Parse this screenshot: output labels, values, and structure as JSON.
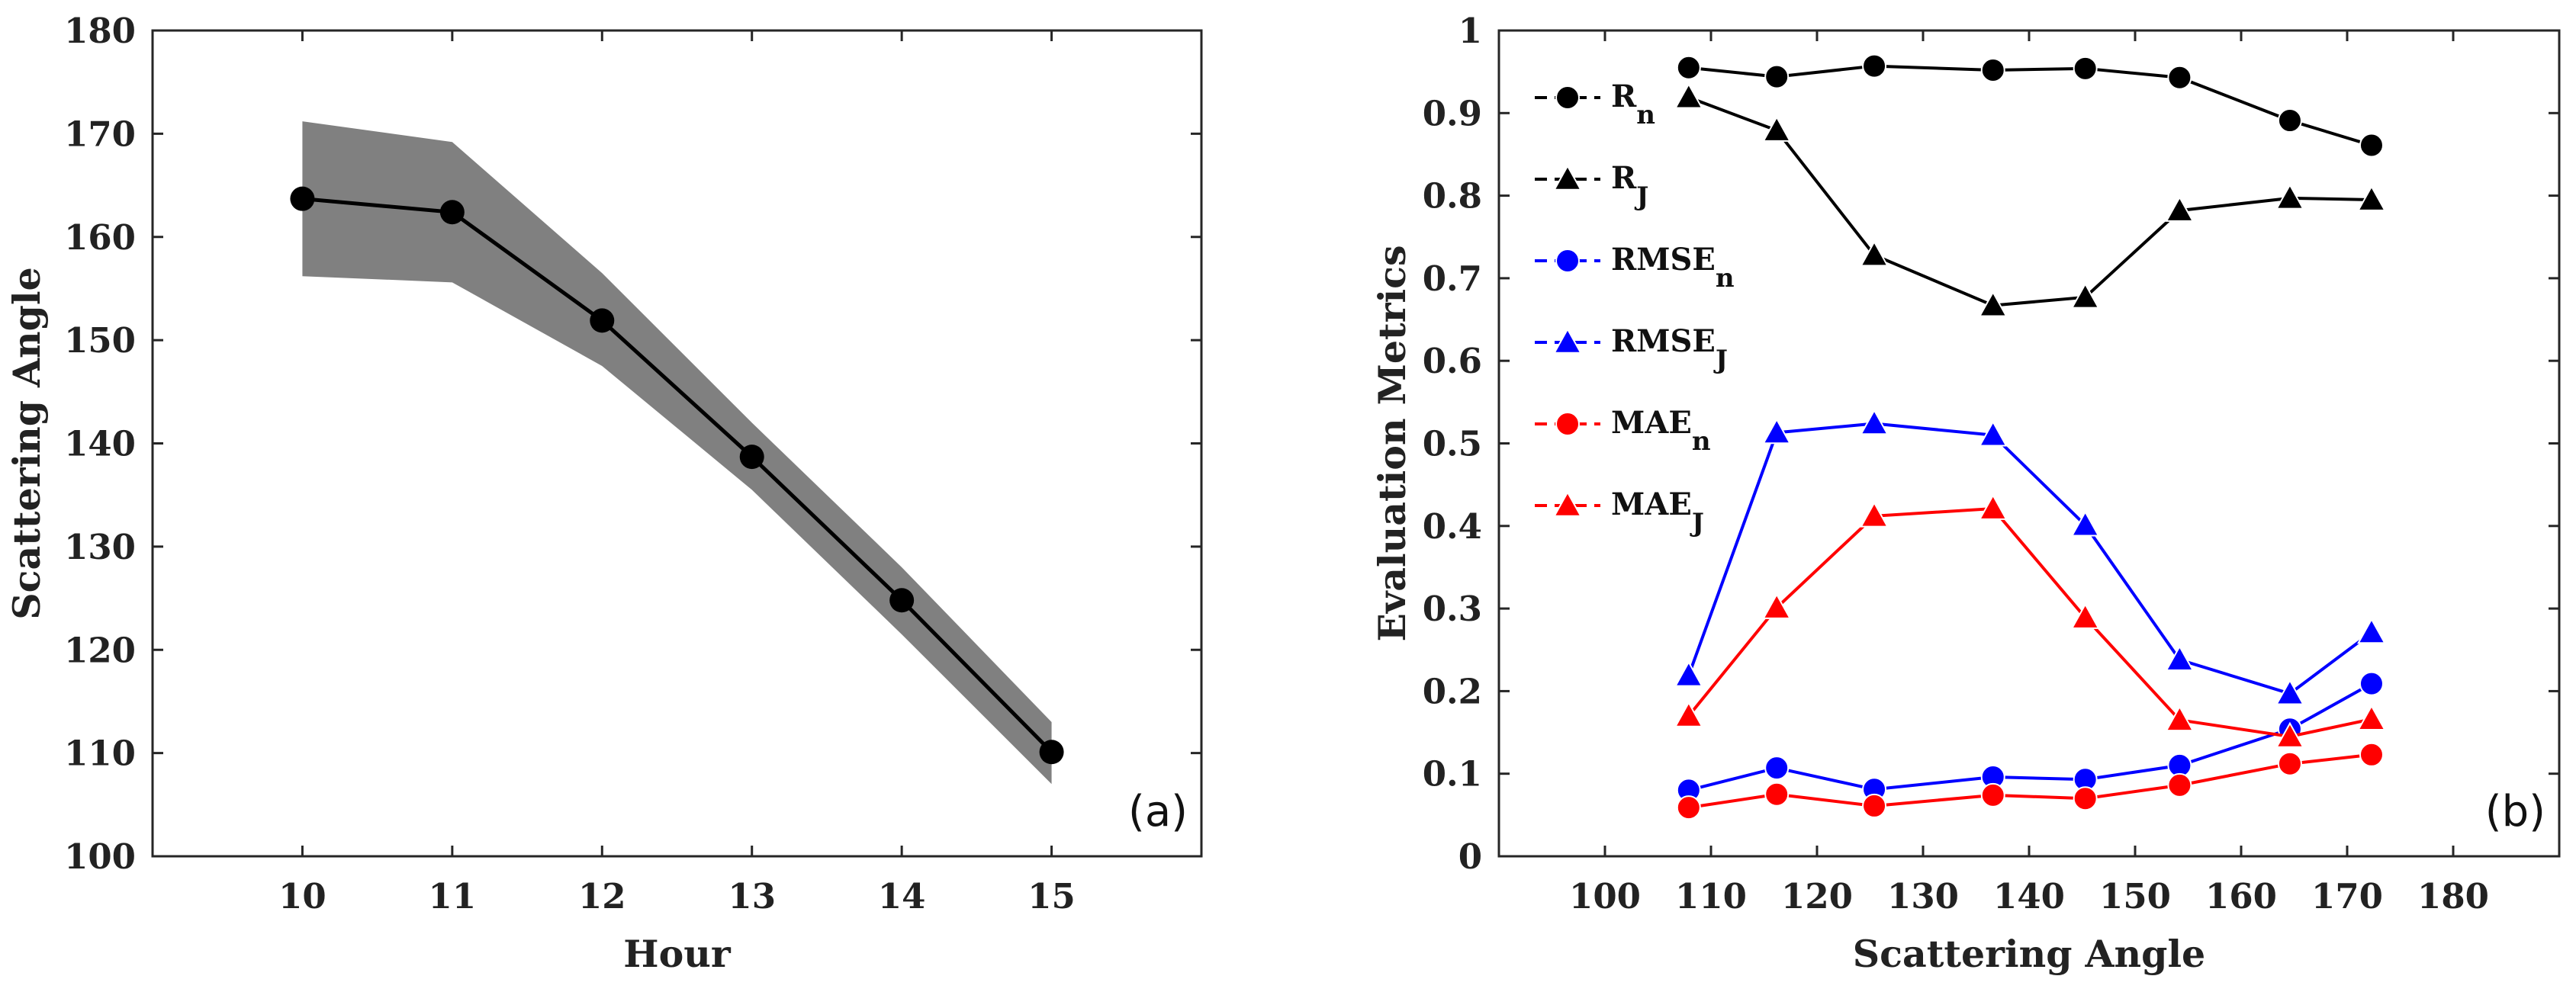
{
  "chart_data": [
    {
      "type": "line",
      "panel": "(a)",
      "xlabel": "Hour",
      "ylabel": "Scattering Angle",
      "xlim": [
        9,
        16
      ],
      "ylim": [
        100,
        180
      ],
      "xticks": [
        "10",
        "11",
        "12",
        "13",
        "14",
        "15"
      ],
      "yticks": [
        "100",
        "110",
        "120",
        "130",
        "140",
        "150",
        "160",
        "170",
        "180"
      ],
      "grid": false,
      "x": [
        10,
        11,
        12,
        13,
        14,
        15
      ],
      "mean": [
        163.7,
        162.4,
        151.9,
        138.7,
        124.8,
        110.1
      ],
      "band_upper": [
        171.2,
        169.2,
        156.5,
        142.0,
        128.0,
        113.0
      ],
      "band_lower": [
        156.2,
        155.6,
        147.5,
        135.5,
        121.5,
        107.0
      ],
      "colors": {
        "line": "#000000",
        "band": "#808080"
      }
    },
    {
      "type": "line",
      "panel": "(b)",
      "xlabel": "Scattering Angle",
      "ylabel": "Evaluation Metrics",
      "xlim": [
        90,
        190
      ],
      "ylim": [
        0,
        1
      ],
      "xticks": [
        "100",
        "110",
        "120",
        "130",
        "140",
        "150",
        "160",
        "170",
        "180"
      ],
      "yticks": [
        "0",
        "0.1",
        "0.2",
        "0.3",
        "0.4",
        "0.5",
        "0.6",
        "0.7",
        "0.8",
        "0.9",
        "1"
      ],
      "grid": false,
      "legend_position": "top-left",
      "x": [
        107.9,
        116.2,
        125.4,
        136.6,
        145.3,
        154.2,
        164.6,
        172.3
      ],
      "series": [
        {
          "name": "R",
          "sub": "n",
          "marker": "circle",
          "color": "#000000",
          "values": [
            0.955,
            0.944,
            0.957,
            0.952,
            0.954,
            0.943,
            0.891,
            0.861
          ]
        },
        {
          "name": "R",
          "sub": "J",
          "marker": "triangle",
          "color": "#000000",
          "values": [
            0.919,
            0.879,
            0.728,
            0.667,
            0.677,
            0.782,
            0.797,
            0.795
          ]
        },
        {
          "name": "RMSE",
          "sub": "n",
          "marker": "circle",
          "color": "#0000ff",
          "values": [
            0.08,
            0.107,
            0.081,
            0.096,
            0.093,
            0.11,
            0.154,
            0.209
          ]
        },
        {
          "name": "RMSE",
          "sub": "J",
          "marker": "triangle",
          "color": "#0000ff",
          "values": [
            0.219,
            0.513,
            0.524,
            0.51,
            0.401,
            0.238,
            0.197,
            0.271
          ]
        },
        {
          "name": "MAE",
          "sub": "n",
          "marker": "circle",
          "color": "#ff0000",
          "values": [
            0.059,
            0.075,
            0.061,
            0.074,
            0.07,
            0.086,
            0.112,
            0.123
          ]
        },
        {
          "name": "MAE",
          "sub": "J",
          "marker": "triangle",
          "color": "#ff0000",
          "values": [
            0.17,
            0.301,
            0.412,
            0.421,
            0.289,
            0.165,
            0.145,
            0.166
          ]
        }
      ]
    }
  ]
}
